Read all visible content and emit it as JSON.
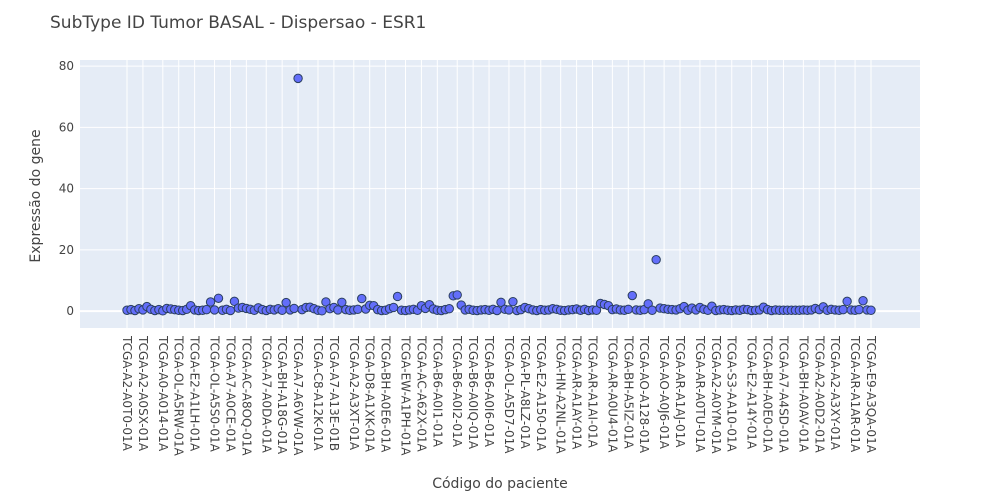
{
  "chart_data": {
    "type": "scatter",
    "title": "SubType ID Tumor BASAL - Dispersao - ESR1",
    "xlabel": "Código do paciente",
    "ylabel": "Expressão do gene",
    "ylim": [
      -5.5,
      82
    ],
    "y_ticks": [
      0,
      20,
      40,
      60,
      80
    ],
    "grid": true,
    "marker_color": "#636efa",
    "marker_edge_color": "#2a3f5f",
    "plot_bg": "#e5ecf6",
    "x_tick_labels": [
      "TCGA-A2-A0T0-01A",
      "TCGA-A2-A0SX-01A",
      "TCGA-A0-A014-01A",
      "TCGA-OL-A5RW-01A",
      "TCGA-E2-A1LH-01A",
      "TCGA-OL-A5S0-01A",
      "TCGA-A7-A0CE-01A",
      "TCGA-AC-A8OQ-01A",
      "TCGA-A7-A0DA-01A",
      "TCGA-BH-A18G-01A",
      "TCGA-A7-A6VW-01A",
      "TCGA-C8-A12K-01A",
      "TCGA-A7-A13E-01B",
      "TCGA-A2-A3XT-01A",
      "TCGA-D8-A1XK-01A",
      "TCGA-BH-A0E6-01A",
      "TCGA-EW-A1PH-01A",
      "TCGA-AC-A62X-01A",
      "TCGA-B6-A0I1-01A",
      "TCGA-B6-A0I2-01A",
      "TCGA-B6-A0IQ-01A",
      "TCGA-B6-A0I6-01A",
      "TCGA-OL-A5D7-01A",
      "TCGA-PL-A8LZ-01A",
      "TCGA-E2-A150-01A",
      "TCGA-HN-A2NL-01A",
      "TCGA-AR-A1AY-01A",
      "TCGA-AR-A1AI-01A",
      "TCGA-AR-A0U4-01A",
      "TCGA-BH-A5IZ-01A",
      "TCGA-AO-A128-01A",
      "TCGA-AO-A0J6-01A",
      "TCGA-AR-A1AJ-01A",
      "TCGA-AR-A0TU-01A",
      "TCGA-A2-A0YM-01A",
      "TCGA-S3-AA10-01A",
      "TCGA-E2-A14Y-01A",
      "TCGA-BH-A0E0-01A",
      "TCGA-A7-A4SD-01A",
      "TCGA-BH-A0AV-01A",
      "TCGA-A2-A0D2-01A",
      "TCGA-A2-A3XY-01A",
      "TCGA-AR-A1AR-01A",
      "TCGA-E9-A3QA-01A"
    ],
    "y": [
      0.3,
      0.5,
      0.2,
      0.8,
      0.4,
      1.5,
      0.6,
      0.2,
      0.5,
      0.1,
      0.9,
      0.7,
      0.5,
      0.3,
      0.2,
      0.6,
      1.8,
      0.4,
      0.2,
      0.3,
      0.5,
      3.0,
      0.4,
      4.2,
      0.3,
      0.6,
      0.2,
      3.2,
      1.0,
      1.2,
      0.9,
      0.6,
      0.3,
      1.1,
      0.5,
      0.2,
      0.6,
      0.4,
      0.8,
      0.3,
      2.8,
      0.4,
      0.9,
      76.0,
      0.5,
      1.2,
      1.3,
      0.8,
      0.3,
      0.1,
      3.0,
      0.8,
      1.2,
      0.4,
      2.9,
      0.5,
      0.3,
      0.4,
      0.6,
      4.1,
      0.7,
      1.9,
      1.8,
      0.5,
      0.2,
      0.3,
      0.8,
      1.2,
      4.8,
      0.3,
      0.2,
      0.4,
      0.6,
      0.3,
      1.8,
      0.9,
      2.1,
      0.7,
      0.3,
      0.2,
      0.5,
      0.8,
      5.0,
      5.3,
      2.0,
      0.4,
      0.6,
      0.3,
      0.2,
      0.4,
      0.5,
      0.3,
      0.6,
      0.2,
      2.9,
      0.6,
      0.4,
      3.1,
      0.2,
      0.5,
      1.2,
      0.8,
      0.4,
      0.2,
      0.5,
      0.3,
      0.4,
      0.8,
      0.6,
      0.3,
      0.2,
      0.4,
      0.5,
      0.7,
      0.3,
      0.6,
      0.2,
      0.4,
      0.3,
      2.5,
      2.2,
      1.8,
      0.5,
      0.7,
      0.4,
      0.3,
      0.6,
      5.1,
      0.4,
      0.3,
      0.5,
      2.4,
      0.3,
      16.8,
      1.0,
      0.8,
      0.6,
      0.5,
      0.4,
      0.8,
      1.5,
      0.3,
      1.0,
      0.4,
      1.2,
      0.6,
      0.3,
      1.6,
      0.2,
      0.4,
      0.5,
      0.3,
      0.2,
      0.4,
      0.3,
      0.6,
      0.5,
      0.2,
      0.3,
      0.4,
      1.3,
      0.5,
      0.2,
      0.4,
      0.3,
      0.3,
      0.3,
      0.3,
      0.3,
      0.3,
      0.4,
      0.3,
      0.4,
      0.9,
      0.5,
      1.4,
      0.3,
      0.6,
      0.4,
      0.3,
      0.5,
      3.2,
      0.4,
      0.3,
      0.5,
      3.4,
      0.4,
      0.3
    ]
  }
}
